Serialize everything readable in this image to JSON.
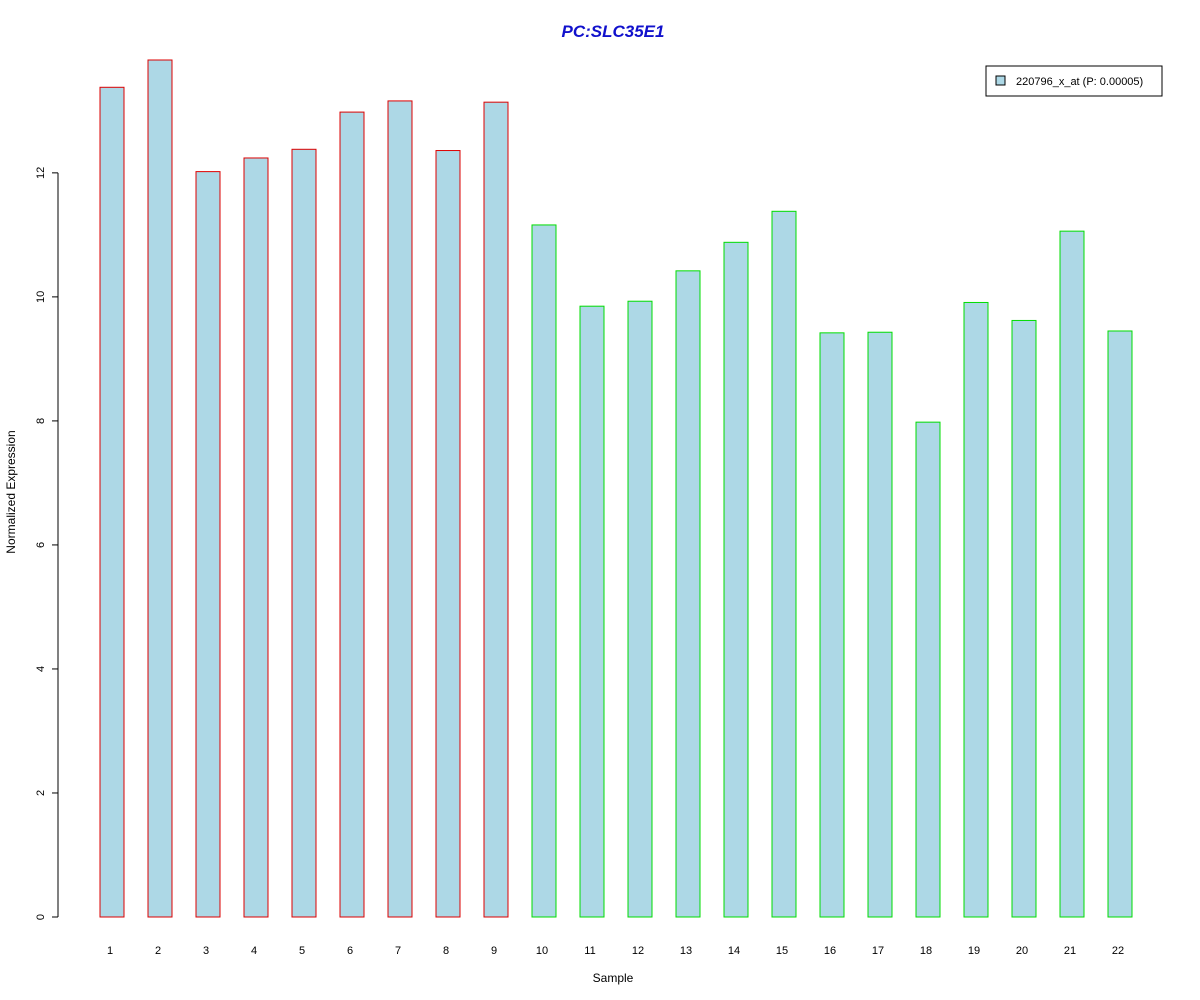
{
  "chart_data": {
    "type": "bar",
    "title": "PC:SLC35E1",
    "xlabel": "Sample",
    "ylabel": "Normalized Expression",
    "categories": [
      "1",
      "2",
      "3",
      "4",
      "5",
      "6",
      "7",
      "8",
      "9",
      "10",
      "11",
      "12",
      "13",
      "14",
      "15",
      "16",
      "17",
      "18",
      "19",
      "20",
      "21",
      "22"
    ],
    "values": [
      13.38,
      13.82,
      12.02,
      12.24,
      12.38,
      12.98,
      13.16,
      12.36,
      13.14,
      11.16,
      9.85,
      9.93,
      10.42,
      10.88,
      11.38,
      9.42,
      9.43,
      7.98,
      9.91,
      9.62,
      11.06,
      9.45
    ],
    "groups": [
      1,
      1,
      1,
      1,
      1,
      1,
      1,
      1,
      1,
      2,
      2,
      2,
      2,
      2,
      2,
      2,
      2,
      2,
      2,
      2,
      2,
      2
    ],
    "yticks": [
      0,
      2,
      4,
      6,
      8,
      10,
      12
    ],
    "ylim": [
      0,
      13.82
    ],
    "legend": {
      "label": "220796_x_at (P: 0.00005)",
      "position": "top-right"
    },
    "grid": false
  },
  "colors": {
    "title": "#1111cc",
    "bar_fill": "#add8e6",
    "group1_border": "#dd0000",
    "group2_border": "#00dd00",
    "axis": "#000000"
  }
}
